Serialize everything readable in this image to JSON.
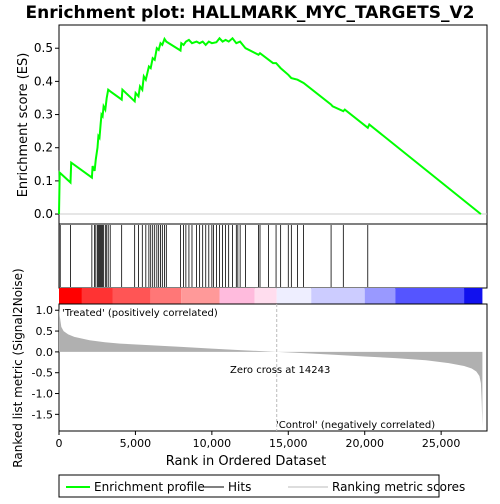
{
  "chart_data": {
    "type": "line",
    "title": "Enrichment plot: HALLMARK_MYC_TARGETS_V2",
    "top_panel": {
      "ylabel": "Enrichment score (ES)",
      "yticks": [
        "0.0",
        "0.1",
        "0.2",
        "0.3",
        "0.4",
        "0.5"
      ],
      "ylim": [
        -0.03,
        0.57
      ],
      "series": {
        "name": "Enrichment profile",
        "color": "#00ff00",
        "x": [
          0,
          45,
          750,
          800,
          2150,
          2200,
          2330,
          2410,
          2520,
          2580,
          2650,
          2720,
          2780,
          2850,
          2920,
          3030,
          3120,
          3220,
          3350,
          4100,
          4150,
          4950,
          5010,
          5200,
          5300,
          5450,
          5550,
          5680,
          5880,
          6000,
          6130,
          6260,
          6400,
          6520,
          6640,
          6760,
          6900,
          7020,
          7950,
          8000,
          8150,
          8300,
          8500,
          8700,
          9000,
          9200,
          9400,
          9600,
          9800,
          10000,
          10300,
          10500,
          10700,
          10900,
          11100,
          11350,
          11600,
          11850,
          12200,
          13050,
          13150,
          14000,
          14200,
          14500,
          15000,
          15200,
          15600,
          16000,
          17800,
          17900,
          18600,
          18700,
          20200,
          20300,
          27600
        ],
        "y": [
          0.0,
          0.125,
          0.095,
          0.155,
          0.11,
          0.145,
          0.13,
          0.165,
          0.2,
          0.235,
          0.23,
          0.27,
          0.3,
          0.295,
          0.325,
          0.315,
          0.35,
          0.375,
          0.37,
          0.345,
          0.375,
          0.34,
          0.365,
          0.355,
          0.385,
          0.375,
          0.415,
          0.405,
          0.445,
          0.44,
          0.47,
          0.465,
          0.5,
          0.495,
          0.515,
          0.51,
          0.528,
          0.52,
          0.493,
          0.515,
          0.51,
          0.52,
          0.525,
          0.515,
          0.52,
          0.515,
          0.52,
          0.51,
          0.52,
          0.515,
          0.518,
          0.53,
          0.52,
          0.525,
          0.52,
          0.53,
          0.515,
          0.52,
          0.5,
          0.48,
          0.485,
          0.455,
          0.455,
          0.44,
          0.42,
          0.41,
          0.405,
          0.395,
          0.33,
          0.325,
          0.31,
          0.315,
          0.26,
          0.27,
          0.0
        ]
      },
      "baseline": 0.0
    },
    "hits_panel": {
      "hit_positions": [
        80,
        750,
        2150,
        2330,
        2410,
        2520,
        2580,
        2650,
        2720,
        2780,
        2850,
        2920,
        3030,
        3120,
        3220,
        3350,
        4100,
        4950,
        5200,
        5450,
        5680,
        5880,
        6000,
        6130,
        6260,
        6400,
        6520,
        6640,
        6760,
        6900,
        7020,
        7950,
        8150,
        8300,
        8500,
        8700,
        9000,
        9200,
        9400,
        9600,
        9800,
        10000,
        10100,
        10300,
        10500,
        10700,
        10900,
        11100,
        11350,
        11600,
        11700,
        11850,
        12200,
        13050,
        13150,
        13700,
        14200,
        14500,
        15000,
        15200,
        15600,
        16000,
        17800,
        18600,
        20200
      ]
    },
    "gradient_bar": {
      "segments": [
        {
          "from": 0,
          "to": 1500,
          "color": "#ff0000"
        },
        {
          "from": 1500,
          "to": 3500,
          "color": "#ff3333"
        },
        {
          "from": 3500,
          "to": 6000,
          "color": "#ff5555"
        },
        {
          "from": 6000,
          "to": 8000,
          "color": "#ff7777"
        },
        {
          "from": 8000,
          "to": 10500,
          "color": "#ff9999"
        },
        {
          "from": 10500,
          "to": 12800,
          "color": "#ffbbdd"
        },
        {
          "from": 12800,
          "to": 14243,
          "color": "#ffddee"
        },
        {
          "from": 14243,
          "to": 16500,
          "color": "#eeeeff"
        },
        {
          "from": 16500,
          "to": 20000,
          "color": "#ccccff"
        },
        {
          "from": 20000,
          "to": 22000,
          "color": "#9999ff"
        },
        {
          "from": 22000,
          "to": 26500,
          "color": "#5555ff"
        },
        {
          "from": 26500,
          "to": 27700,
          "color": "#1111ee"
        }
      ]
    },
    "bottom_panel": {
      "ylabel": "Ranked list metric (Signal2Noise)",
      "xlabel": "Rank in Ordered Dataset",
      "yticks": [
        "1.0",
        "0.5",
        "0.0",
        "-0.5",
        "-1.0",
        "-1.5"
      ],
      "ylim": [
        -1.9,
        1.15
      ],
      "xticks": [
        "0",
        "5,000",
        "10,000",
        "15,000",
        "20,000",
        "25,000"
      ],
      "xlim": [
        0,
        28000
      ],
      "metric_curve": {
        "x": [
          0,
          50,
          150,
          300,
          600,
          1000,
          2000,
          3000,
          4000,
          6000,
          8000,
          10000,
          12000,
          14243,
          16000,
          18000,
          20000,
          22000,
          24000,
          25500,
          26500,
          27000,
          27300,
          27500,
          27600,
          27650,
          27700
        ],
        "y": [
          1.05,
          0.85,
          0.6,
          0.5,
          0.42,
          0.36,
          0.28,
          0.23,
          0.2,
          0.16,
          0.12,
          0.08,
          0.04,
          0.0,
          -0.03,
          -0.07,
          -0.11,
          -0.15,
          -0.2,
          -0.27,
          -0.34,
          -0.4,
          -0.47,
          -0.58,
          -0.75,
          -1.2,
          -1.8
        ]
      },
      "zero_cross_label": "Zero cross at 14243",
      "zero_cross": 14243,
      "positive_label": "'Treated' (positively correlated)",
      "negative_label": "'Control' (negatively correlated)"
    },
    "legend": {
      "position": "bottom",
      "items": [
        {
          "label": "Enrichment profile",
          "color": "#00ff00",
          "kind": "line"
        },
        {
          "label": "Hits",
          "color": "#000000",
          "kind": "line"
        },
        {
          "label": "Ranking metric scores",
          "color": "#bbbbbb",
          "kind": "line"
        }
      ]
    },
    "colors": {
      "es_line": "#00ff00",
      "hit": "#000000",
      "metric_fill": "#b0b0b0",
      "zero_cross_line": "#bbbbbb",
      "positive_text": "#cc0000",
      "negative_text": "#0000cc"
    }
  }
}
